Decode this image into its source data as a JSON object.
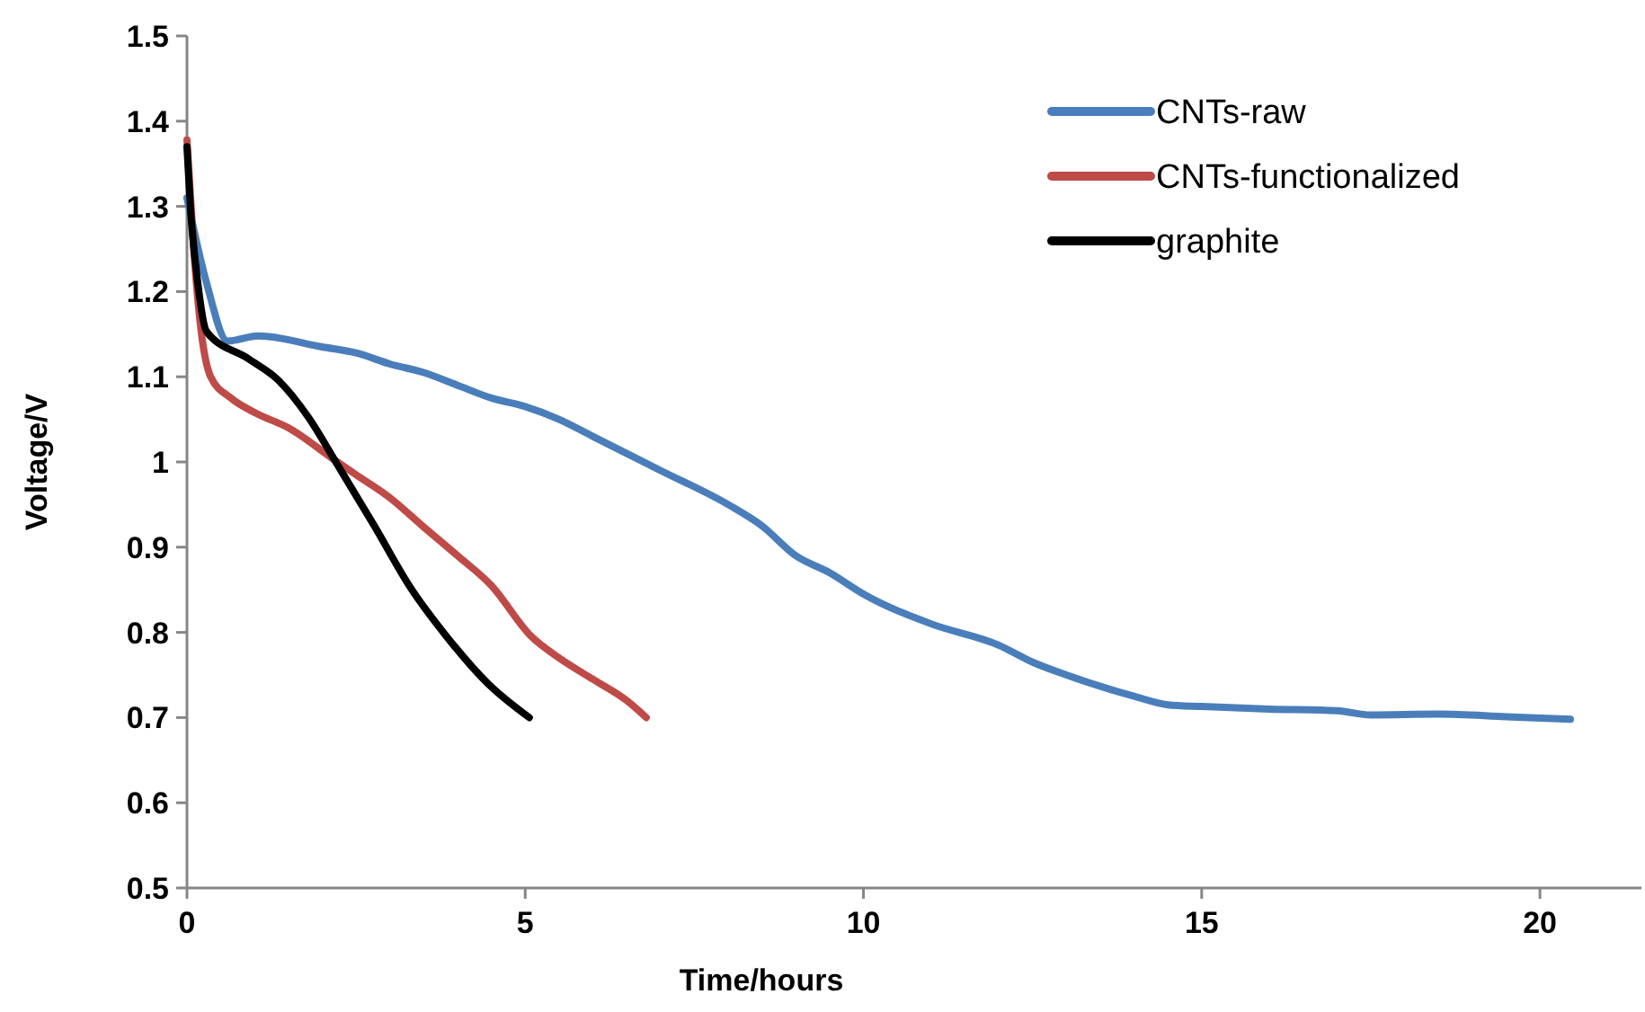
{
  "chart_data": {
    "type": "line",
    "xlabel": "Time/hours",
    "ylabel": "Voltage/V",
    "xlim": [
      0,
      21.5
    ],
    "xticks": [
      0,
      5,
      10,
      15,
      20
    ],
    "ylim": [
      0.5,
      1.5
    ],
    "yticks": [
      0.5,
      0.6,
      0.7,
      0.8,
      0.9,
      1,
      1.1,
      1.2,
      1.3,
      1.4,
      1.5
    ],
    "grid": false,
    "legend": "top right",
    "marker": "none",
    "line_style": "solid",
    "series": [
      {
        "name": "CNTs-raw",
        "color": "#4a7ebb",
        "x": [
          0,
          0.29,
          0.6,
          1.05,
          2,
          2.5,
          3,
          3.5,
          4,
          4.5,
          5,
          5.5,
          6,
          7,
          8,
          8.5,
          9,
          9.5,
          10,
          11,
          12,
          12.5,
          13,
          14,
          14.5,
          15,
          16,
          17,
          17.5,
          18.5,
          19.5,
          20.45
        ],
        "values": [
          1.31,
          1.21,
          1.142,
          1.148,
          1.135,
          1.128,
          1.115,
          1.105,
          1.09,
          1.075,
          1.065,
          1.05,
          1.03,
          0.99,
          0.95,
          0.925,
          0.89,
          0.87,
          0.845,
          0.81,
          0.785,
          0.765,
          0.75,
          0.725,
          0.715,
          0.713,
          0.71,
          0.708,
          0.703,
          0.704,
          0.701,
          0.698
        ]
      },
      {
        "name": "CNTs-functionalized",
        "color": "#be4b48",
        "x": [
          0,
          0.1,
          0.2,
          0.35,
          0.65,
          1,
          1.5,
          2.17,
          2.5,
          3,
          3.48,
          4,
          4.5,
          5.08,
          5.5,
          6,
          6.5,
          6.79
        ],
        "values": [
          1.378,
          1.25,
          1.16,
          1.1,
          1.075,
          1.058,
          1.04,
          1.003,
          0.985,
          0.958,
          0.925,
          0.89,
          0.855,
          0.796,
          0.77,
          0.745,
          0.72,
          0.7
        ]
      },
      {
        "name": "graphite",
        "color": "#000000",
        "x": [
          0,
          0.05,
          0.16,
          0.29,
          0.91,
          1.35,
          1.79,
          2.23,
          2.77,
          3.3,
          3.83,
          4.46,
          5.06
        ],
        "values": [
          1.37,
          1.3,
          1.21,
          1.153,
          1.121,
          1.096,
          1.053,
          0.996,
          0.925,
          0.853,
          0.796,
          0.739,
          0.7
        ]
      }
    ]
  }
}
